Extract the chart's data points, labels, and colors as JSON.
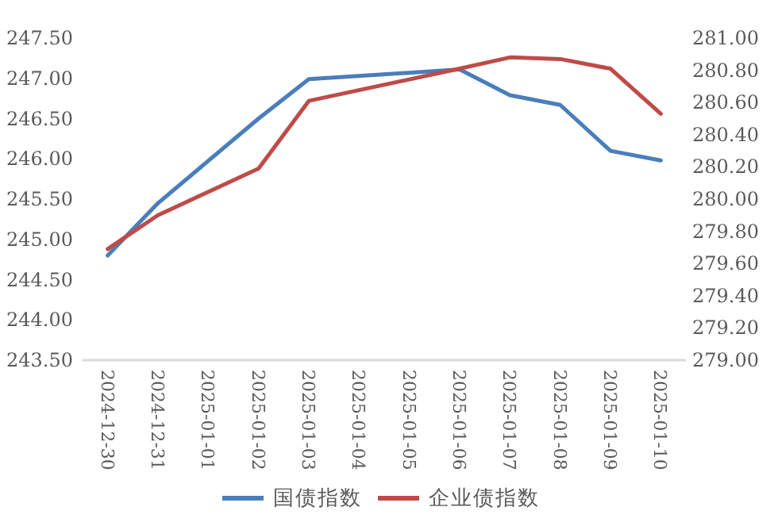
{
  "chart_data": {
    "type": "line",
    "x": [
      "2024-12-30",
      "2024-12-31",
      "2025-01-02",
      "2025-01-03",
      "2025-01-06",
      "2025-01-07",
      "2025-01-08",
      "2025-01-09",
      "2025-01-10"
    ],
    "series": [
      {
        "name": "国债指数",
        "color": "#4a7ebb",
        "values": [
          244.8,
          245.45,
          246.5,
          246.99,
          247.11,
          246.79,
          246.67,
          246.1,
          245.98
        ]
      },
      {
        "name": "企业债指数",
        "color": "#be4b48",
        "axis": "y2",
        "values": [
          279.69,
          279.9,
          280.19,
          280.61,
          280.81,
          280.88,
          280.87,
          280.81,
          280.53
        ]
      }
    ],
    "xlim": [
      "2024-12-29T12:00",
      "2025-01-10T12:00"
    ],
    "xticks": [
      {
        "value": "2024-12-30",
        "label": "2024-12-30"
      },
      {
        "value": "2024-12-31",
        "label": "2024-12-31"
      },
      {
        "value": "2025-01-01",
        "label": "2025-01-01"
      },
      {
        "value": "2025-01-02",
        "label": "2025-01-02"
      },
      {
        "value": "2025-01-03",
        "label": "2025-01-03"
      },
      {
        "value": "2025-01-04",
        "label": "2025-01-04"
      },
      {
        "value": "2025-01-05",
        "label": "2025-01-05"
      },
      {
        "value": "2025-01-06",
        "label": "2025-01-06"
      },
      {
        "value": "2025-01-07",
        "label": "2025-01-07"
      },
      {
        "value": "2025-01-08",
        "label": "2025-01-08"
      },
      {
        "value": "2025-01-09",
        "label": "2025-01-09"
      },
      {
        "value": "2025-01-10",
        "label": "2025-01-10"
      }
    ],
    "ylim": [
      243.5,
      247.5
    ],
    "yticks": [
      {
        "value": 243.5,
        "label": "243.50"
      },
      {
        "value": 244,
        "label": "244.00"
      },
      {
        "value": 244.5,
        "label": "244.50"
      },
      {
        "value": 245,
        "label": "245.00"
      },
      {
        "value": 245.5,
        "label": "245.50"
      },
      {
        "value": 246,
        "label": "246.00"
      },
      {
        "value": 246.5,
        "label": "246.50"
      },
      {
        "value": 247,
        "label": "247.00"
      },
      {
        "value": 247.5,
        "label": "247.50"
      }
    ],
    "y2lim": [
      279,
      281
    ],
    "y2ticks": [
      {
        "value": 279,
        "label": "279.00"
      },
      {
        "value": 279.2,
        "label": "279.20"
      },
      {
        "value": 279.4,
        "label": "279.40"
      },
      {
        "value": 279.6,
        "label": "279.60"
      },
      {
        "value": 279.8,
        "label": "279.80"
      },
      {
        "value": 280,
        "label": "280.00"
      },
      {
        "value": 280.2,
        "label": "280.20"
      },
      {
        "value": 280.4,
        "label": "280.40"
      },
      {
        "value": 280.6,
        "label": "280.60"
      },
      {
        "value": 280.8,
        "label": "280.80"
      },
      {
        "value": 281,
        "label": "281.00"
      }
    ],
    "legend": "bottom",
    "grid": false
  }
}
